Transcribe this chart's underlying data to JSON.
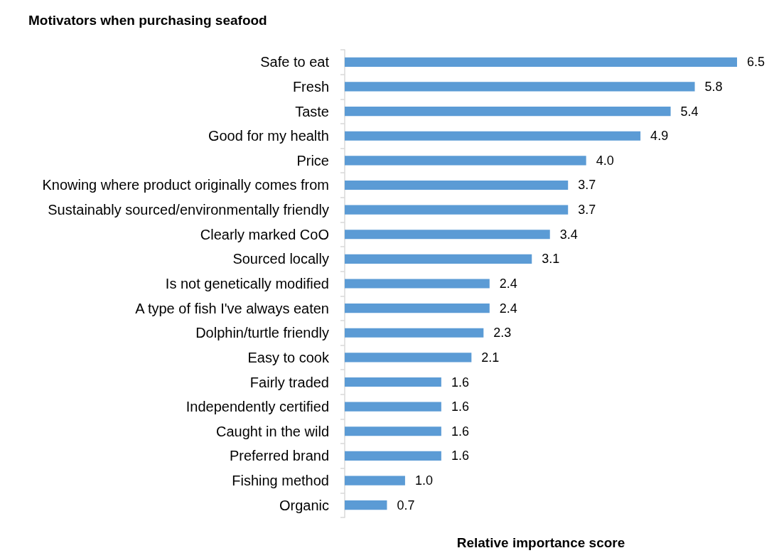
{
  "chart_data": {
    "type": "bar",
    "orientation": "horizontal",
    "title": "Motivators when purchasing seafood",
    "xlabel": "Relative importance score",
    "categories": [
      "Safe to eat",
      "Fresh",
      "Taste",
      "Good for my health",
      "Price",
      "Knowing where product originally comes from",
      "Sustainably sourced/environmentally friendly",
      "Clearly marked CoO",
      "Sourced locally",
      "Is not genetically modified",
      "A type of fish I've always eaten",
      "Dolphin/turtle friendly",
      "Easy to cook",
      "Fairly traded",
      "Independently certified",
      "Caught in the wild",
      "Preferred brand",
      "Fishing method",
      "Organic"
    ],
    "values": [
      6.5,
      5.8,
      5.4,
      4.9,
      4.0,
      3.7,
      3.7,
      3.4,
      3.1,
      2.4,
      2.4,
      2.3,
      2.1,
      1.6,
      1.6,
      1.6,
      1.6,
      1.0,
      0.7
    ],
    "value_labels": [
      "6.5",
      "5.8",
      "5.4",
      "4.9",
      "4.0",
      "3.7",
      "3.7",
      "3.4",
      "3.1",
      "2.4",
      "2.4",
      "2.3",
      "2.1",
      "1.6",
      "1.6",
      "1.6",
      "1.6",
      "1.0",
      "0.7"
    ],
    "color": "#5b9bd5"
  }
}
